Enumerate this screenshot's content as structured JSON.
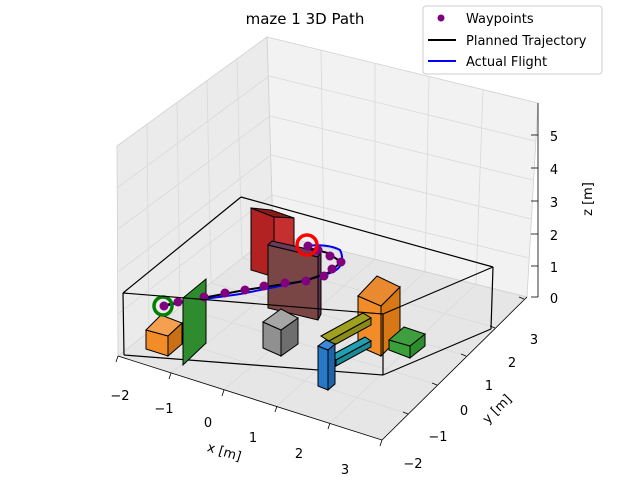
{
  "chart_data": {
    "type": "3d-line",
    "title": "maze 1 3D Path",
    "xlabel": "x [m]",
    "ylabel": "y [m]",
    "zlabel": "z [m]",
    "xlim": [
      -2,
      3
    ],
    "ylim": [
      -2,
      3
    ],
    "zlim": [
      0,
      5
    ],
    "x_ticks": [
      "−2",
      "−1",
      "0",
      "1",
      "2",
      "3"
    ],
    "y_ticks": [
      "−2",
      "−1",
      "0",
      "1",
      "2",
      "3"
    ],
    "z_ticks": [
      "0",
      "1",
      "2",
      "3",
      "4",
      "5"
    ],
    "grid": true,
    "legend": {
      "position": "top-right",
      "entries": [
        {
          "label": "Waypoints",
          "color": "#800080",
          "kind": "marker"
        },
        {
          "label": "Planned Trajectory",
          "color": "#000000",
          "kind": "line"
        },
        {
          "label": "Actual Flight",
          "color": "#0000ff",
          "kind": "line"
        }
      ]
    },
    "colors": {
      "start_marker": "#008000",
      "goal_marker": "#ff0000",
      "obstacle_red": "#b22222",
      "obstacle_orange": "#f28c28",
      "obstacle_green": "#2e8b2e",
      "obstacle_gray": "#808080",
      "obstacle_olive": "#a0a020",
      "obstacle_cyan": "#20a0b0",
      "obstacle_blue": "#2878c8"
    }
  }
}
